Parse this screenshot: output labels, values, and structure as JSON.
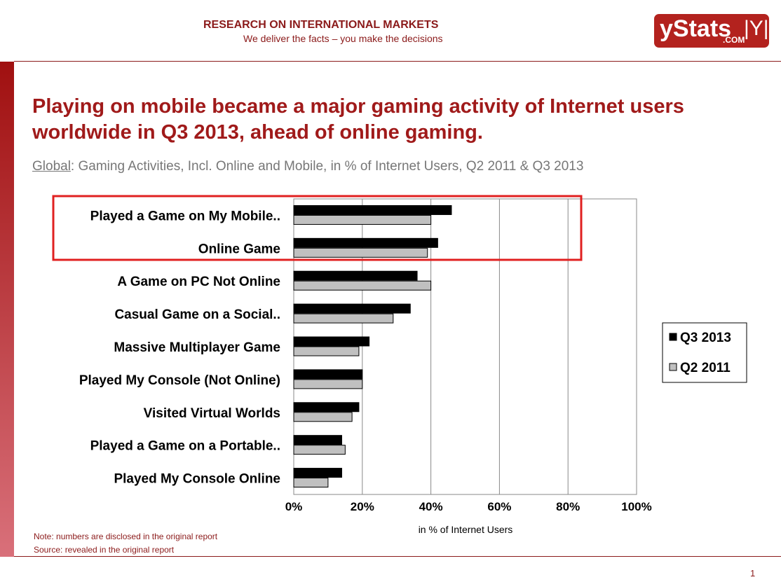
{
  "header": {
    "title": "RESEARCH ON INTERNATIONAL MARKETS",
    "tagline": "We deliver the facts – you make the decisions",
    "logo_text": "yStats .COM"
  },
  "slide": {
    "title_line1": "Playing on mobile became a major gaming activity of Internet users",
    "title_line2": "worldwide in Q3 2013, ahead of online gaming.",
    "subtitle_region": "Global",
    "subtitle_rest": ": Gaming Activities, Incl. Online and Mobile, in % of Internet Users, Q2 2011 & Q3 2013",
    "note": "Note: numbers are disclosed in the original report",
    "source": "Source: revealed in the original report",
    "page_number": "1"
  },
  "chart_data": {
    "type": "bar",
    "orientation": "horizontal",
    "categories": [
      "Played a Game on My Mobile..",
      "Online Game",
      "A Game on PC Not Online",
      "Casual Game on a Social..",
      "Massive Multiplayer Game",
      "Played My Console (Not Online)",
      "Visited Virtual Worlds",
      "Played a Game on a Portable..",
      "Played My Console Online"
    ],
    "series": [
      {
        "name": "Q3 2013",
        "color": "#000000",
        "values": [
          46,
          42,
          36,
          34,
          22,
          20,
          19,
          14,
          14
        ]
      },
      {
        "name": "Q2 2011",
        "color": "#c0c0c0",
        "values": [
          40,
          39,
          40,
          29,
          19,
          20,
          17,
          15,
          10
        ]
      }
    ],
    "xlabel": "in % of Internet Users",
    "xlim": [
      0,
      100
    ],
    "xticks": [
      "0%",
      "20%",
      "40%",
      "60%",
      "80%",
      "100%"
    ],
    "grid": true,
    "legend": "right",
    "highlight": [
      "Played a Game on My Mobile..",
      "Online Game"
    ]
  }
}
